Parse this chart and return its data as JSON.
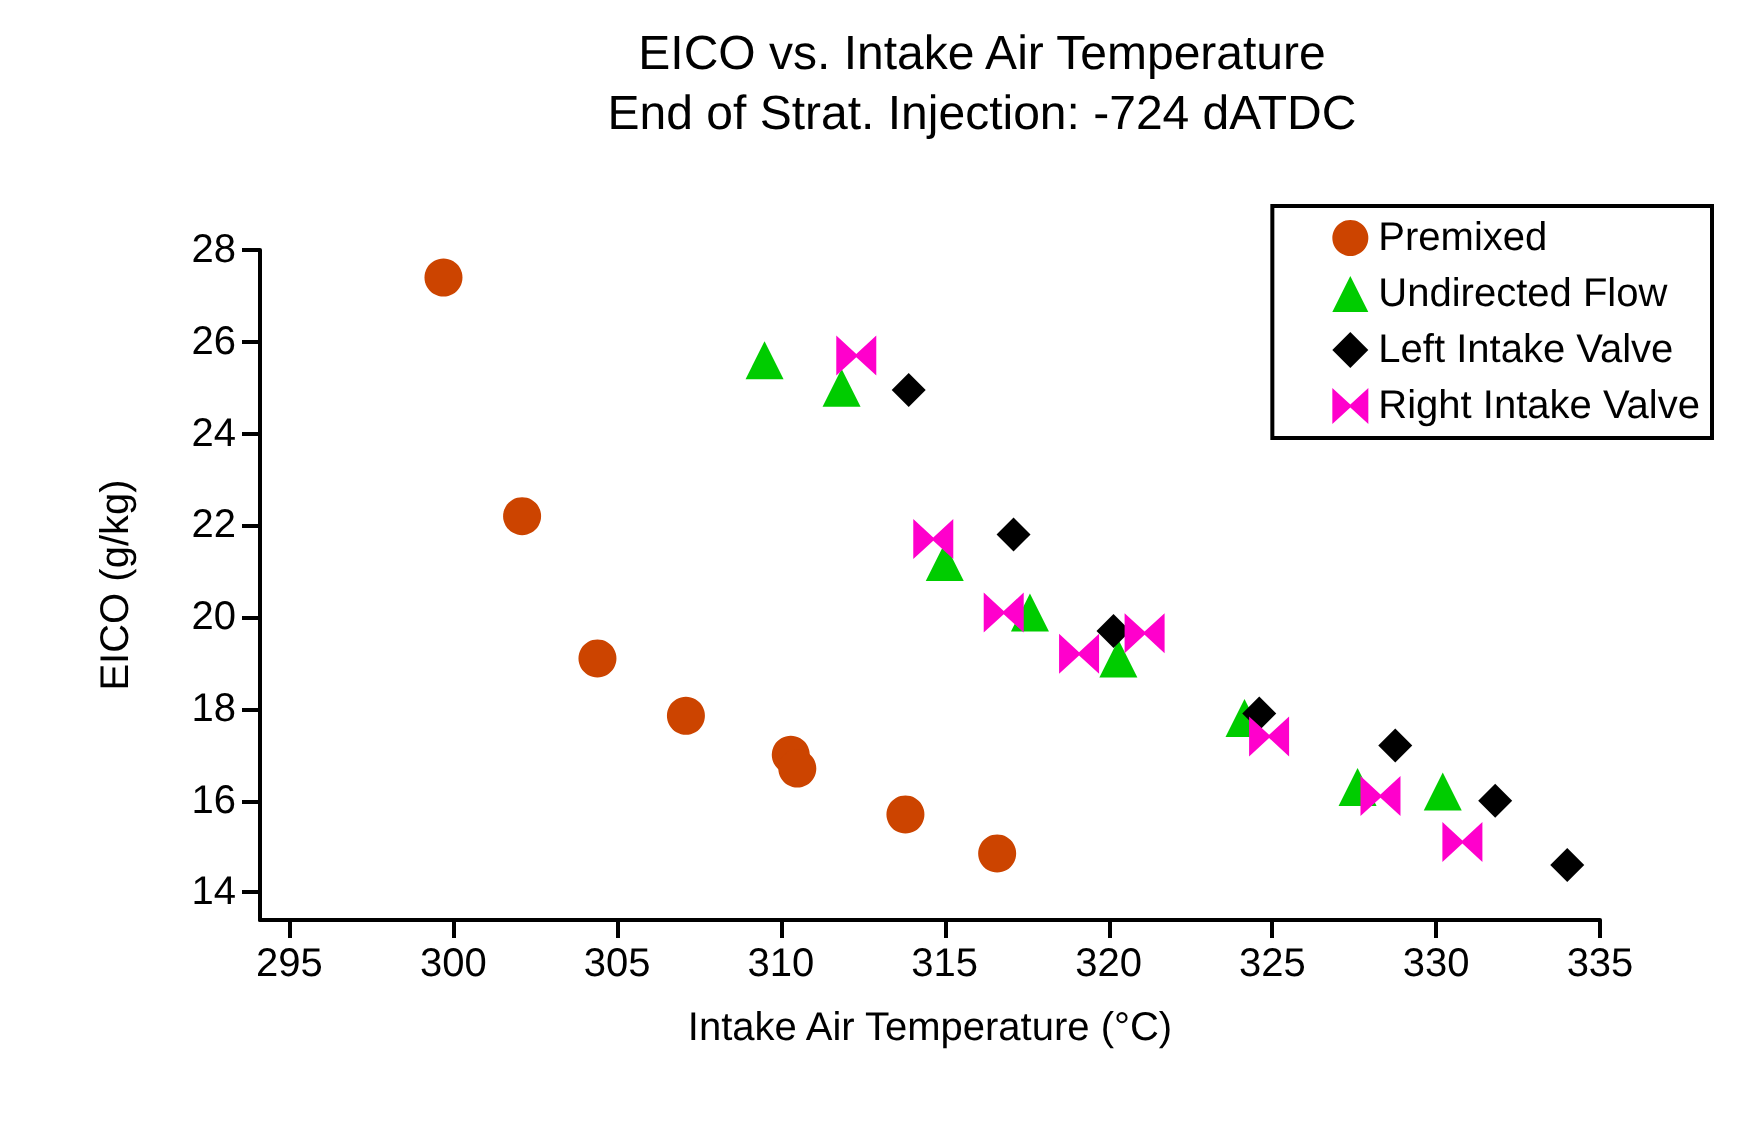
{
  "chart_data": {
    "type": "scatter",
    "title": "EICO vs. Intake Air Temperature",
    "subtitle": "End of Strat. Injection: -724 dATDC",
    "xlabel": "Intake Air Temperature (°C)",
    "ylabel": "EICO (g/kg)",
    "xlim": [
      294.1,
      335
    ],
    "xticks": [
      295,
      300,
      305,
      310,
      315,
      320,
      325,
      330,
      335
    ],
    "ylim": [
      13.4,
      28
    ],
    "yticks": [
      14,
      16,
      18,
      20,
      22,
      24,
      26,
      28
    ],
    "grid": false,
    "legend": "top right",
    "series": [
      {
        "name": "Premixed",
        "color": "#cc4400",
        "marker": "circle",
        "x": [
          299.7,
          302.1,
          304.4,
          307.1,
          310.3,
          310.5,
          313.8,
          316.6
        ],
        "values": [
          27.4,
          22.2,
          19.1,
          17.85,
          17.0,
          16.7,
          15.7,
          14.85
        ]
      },
      {
        "name": "Undirected Flow",
        "color": "#00cc00",
        "marker": "triangle",
        "x": [
          309.5,
          311.85,
          315.0,
          317.6,
          320.3,
          324.15,
          327.6,
          330.2
        ],
        "values": [
          25.6,
          25.0,
          21.2,
          20.1,
          19.1,
          17.8,
          16.3,
          16.2
        ]
      },
      {
        "name": "Left Intake Valve",
        "color": "#000000",
        "marker": "diamond",
        "x": [
          313.9,
          317.1,
          320.15,
          324.6,
          328.75,
          331.8,
          334.0
        ],
        "values": [
          24.95,
          21.8,
          19.7,
          17.9,
          17.2,
          16.0,
          14.6
        ]
      },
      {
        "name": "Right Intake Valve",
        "color": "#ff00cc",
        "x": [
          312.3,
          314.65,
          316.8,
          319.1,
          321.1,
          324.9,
          328.3,
          330.8
        ],
        "values": [
          25.7,
          21.7,
          20.1,
          19.2,
          19.65,
          17.4,
          16.1,
          15.1
        ]
      }
    ]
  }
}
